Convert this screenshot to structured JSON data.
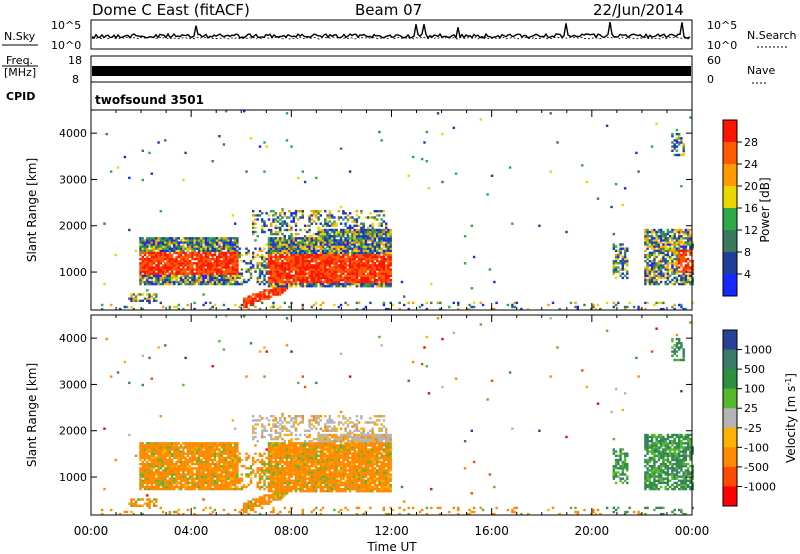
{
  "header": {
    "station": "Dome C East (fitACF)",
    "beam": "Beam 07",
    "date": "22/Jun/2014"
  },
  "status_panels": {
    "nsky_label": "N.Sky",
    "nsky_ticks": [
      "10^5",
      "10^0"
    ],
    "nsearch_label": "N.Search",
    "nsearch_ticks": [
      "10^5",
      "10^0"
    ],
    "freq_label": "Freq.",
    "freq_unit": "[MHz]",
    "freq_ticks": [
      "18",
      "8"
    ],
    "nave_label": "Nave",
    "nave_ticks": [
      "60",
      "0"
    ],
    "cpid_label": "CPID",
    "cpid_value": "twofsound 3501"
  },
  "colors": {
    "power": [
      "#1428ff",
      "#1f3f9a",
      "#3a7a5a",
      "#2fa84a",
      "#e8d800",
      "#ff9a00",
      "#ff5a00",
      "#ff1400"
    ],
    "velocity": [
      "#ff0000",
      "#ff4a00",
      "#ff8a00",
      "#ffb000",
      "#b4b4b4",
      "#55b830",
      "#2f9040",
      "#3a7a6a",
      "#2a3f9a"
    ]
  },
  "chart_data": [
    {
      "type": "heatmap",
      "name": "power",
      "xlabel": "",
      "ylabel": "Slant Range [km]",
      "x_ticks": [
        "00:00",
        "04:00",
        "08:00",
        "12:00",
        "16:00",
        "20:00",
        "00:00"
      ],
      "xlim_hours": [
        0,
        24
      ],
      "ylim": [
        180,
        4500
      ],
      "y_ticks": [
        1000,
        2000,
        3000,
        4000
      ],
      "colorbar": {
        "label": "Power [dB]",
        "ticks": [
          "4",
          "8",
          "12",
          "16",
          "20",
          "24",
          "28"
        ],
        "range": [
          0,
          30
        ]
      }
    },
    {
      "type": "heatmap",
      "name": "velocity",
      "xlabel": "Time UT",
      "ylabel": "Slant Range [km]",
      "x_ticks": [
        "00:00",
        "04:00",
        "08:00",
        "12:00",
        "16:00",
        "20:00",
        "00:00"
      ],
      "xlim_hours": [
        0,
        24
      ],
      "ylim": [
        180,
        4500
      ],
      "y_ticks": [
        1000,
        2000,
        3000,
        4000
      ],
      "colorbar": {
        "label": "Velocity [m s",
        "label_sup": "-1",
        "label_close": "]",
        "ticks": [
          "1000",
          "500",
          "100",
          "25",
          "-25",
          "-100",
          "-500",
          "-1000"
        ]
      }
    }
  ]
}
